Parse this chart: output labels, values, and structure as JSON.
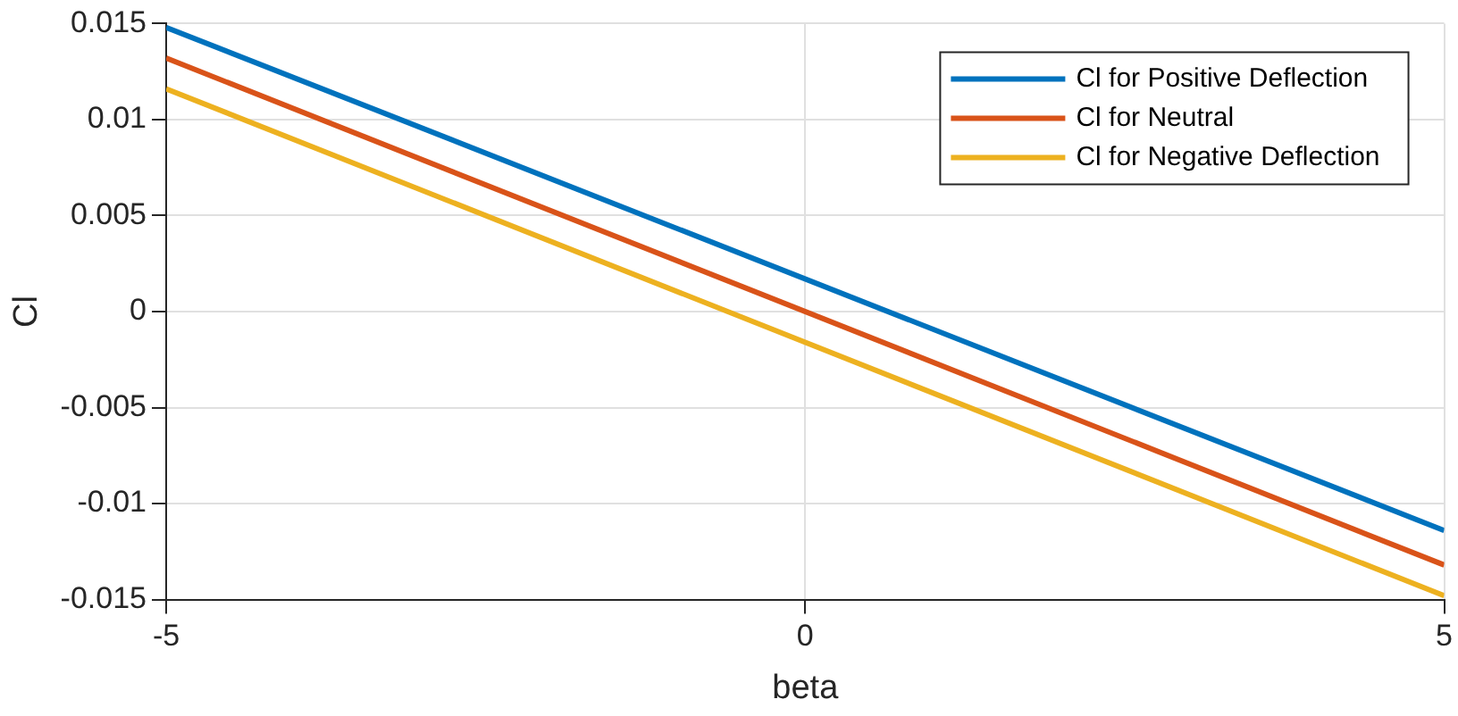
{
  "chart_data": {
    "type": "line",
    "xlabel": "beta",
    "ylabel": "Cl",
    "x": [
      -5,
      5
    ],
    "series": [
      {
        "name": "Cl for Positive Deflection",
        "color": "#0072bd",
        "values": [
          0.0148,
          -0.0114
        ]
      },
      {
        "name": "Cl for Neutral",
        "color": "#d95319",
        "values": [
          0.0132,
          -0.0132
        ]
      },
      {
        "name": "Cl for Negative Deflection",
        "color": "#edb120",
        "values": [
          0.0116,
          -0.0148
        ]
      }
    ],
    "xlim": [
      -5,
      5
    ],
    "xticks": [
      -5,
      0,
      5
    ],
    "ylim": [
      -0.015,
      0.015
    ],
    "yticks": [
      -0.015,
      -0.01,
      -0.005,
      0,
      0.005,
      0.01,
      0.015
    ],
    "grid": true,
    "legend": "top right",
    "marker": "none",
    "line_style": "solid"
  }
}
